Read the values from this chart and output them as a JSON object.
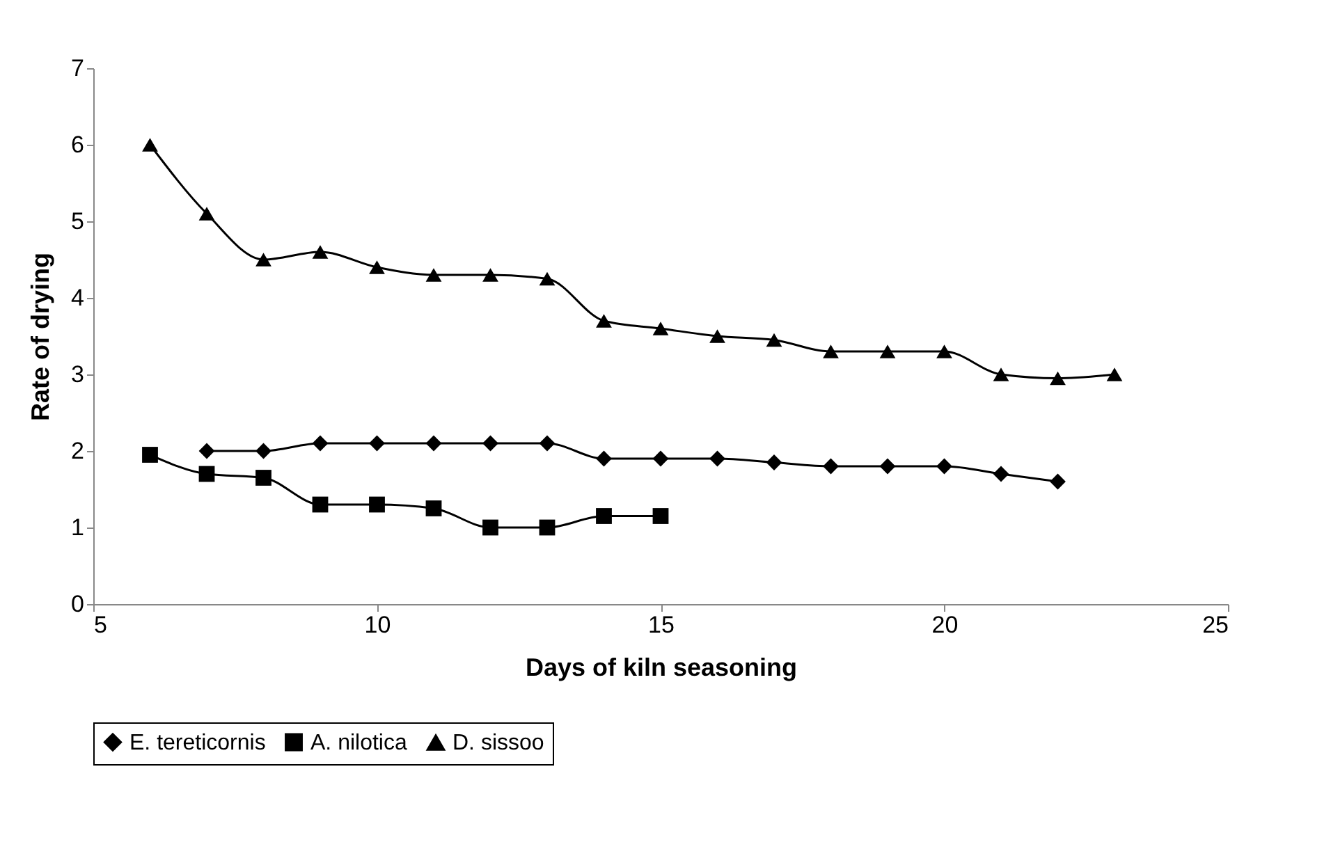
{
  "chart_data": {
    "type": "line",
    "xlabel": "Days of kiln seasoning",
    "ylabel": "Rate of drying",
    "xlim": [
      5,
      25
    ],
    "xticks": [
      5,
      10,
      15,
      20,
      25
    ],
    "ylim": [
      0,
      7
    ],
    "yticks": [
      0,
      1,
      2,
      3,
      4,
      5,
      6,
      7
    ],
    "grid": false,
    "legend": "bottom",
    "line_style": "solid",
    "series": [
      {
        "name": "E. tereticornis",
        "color": "#000000",
        "marker": "diamond",
        "x": [
          7,
          8,
          9,
          10,
          11,
          12,
          13,
          14,
          15,
          16,
          17,
          18,
          19,
          20,
          21,
          22
        ],
        "values": [
          2.0,
          2.0,
          2.1,
          2.1,
          2.1,
          2.1,
          2.1,
          1.9,
          1.9,
          1.9,
          1.85,
          1.8,
          1.8,
          1.8,
          1.7,
          1.6
        ]
      },
      {
        "name": "A. nilotica",
        "color": "#000000",
        "marker": "square",
        "x": [
          6,
          7,
          8,
          9,
          10,
          11,
          12,
          13,
          14,
          15
        ],
        "values": [
          1.95,
          1.7,
          1.65,
          1.3,
          1.3,
          1.25,
          1.0,
          1.0,
          1.15,
          1.15
        ]
      },
      {
        "name": "D. sissoo",
        "color": "#000000",
        "marker": "triangle",
        "x": [
          6,
          7,
          8,
          9,
          10,
          11,
          12,
          13,
          14,
          15,
          16,
          17,
          18,
          19,
          20,
          21,
          22,
          23
        ],
        "values": [
          6.0,
          5.1,
          4.5,
          4.6,
          4.4,
          4.3,
          4.3,
          4.25,
          3.7,
          3.6,
          3.5,
          3.45,
          3.3,
          3.3,
          3.3,
          3.0,
          2.95,
          3.0
        ]
      }
    ]
  }
}
